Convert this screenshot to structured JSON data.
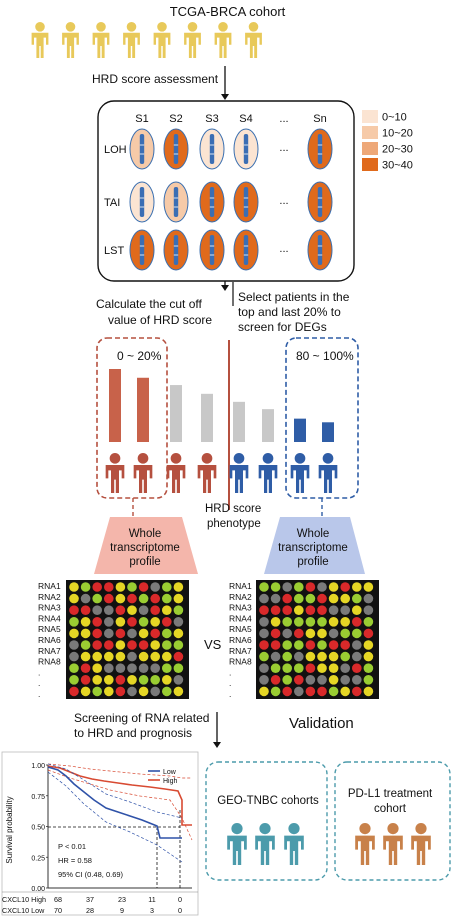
{
  "top": {
    "title": "TCGA-BRCA cohort",
    "step1": "HRD score assessment"
  },
  "matrix": {
    "columns": [
      "S1",
      "S2",
      "S3",
      "S4",
      "...",
      "Sn"
    ],
    "rows": [
      "LOH",
      "TAI",
      "LST"
    ],
    "row_ellipsis": "...",
    "fills": [
      [
        "10~20",
        "30~40",
        "0~10",
        "0~10",
        "",
        "30~40"
      ],
      [
        "0~10",
        "10~20",
        "30~40",
        "30~40",
        "",
        "30~40"
      ],
      [
        "30~40",
        "30~40",
        "30~40",
        "30~40",
        "",
        "30~40"
      ]
    ]
  },
  "legend": {
    "items": [
      {
        "label": "0~10",
        "color": "#fbe4d2"
      },
      {
        "label": "10~20",
        "color": "#f6caa8"
      },
      {
        "label": "20~30",
        "color": "#eea878"
      },
      {
        "label": "30~40",
        "color": "#e06a1c"
      }
    ]
  },
  "middle": {
    "left_text": [
      "Calculate the cut off",
      "value of HRD score"
    ],
    "right_text": [
      "Select patients in the",
      "top and last 20% to",
      "screen for  DEGs"
    ],
    "group_low_label": "0 ~ 20%",
    "group_high_label": "80 ~ 100%",
    "divider_label": [
      "HRD score",
      "phenotype"
    ],
    "bars": [
      {
        "value": 1.0,
        "group": "red"
      },
      {
        "value": 0.88,
        "group": "red"
      },
      {
        "value": 0.78,
        "group": "gray"
      },
      {
        "value": 0.66,
        "group": "gray"
      },
      {
        "value": 0.55,
        "group": "gray"
      },
      {
        "value": 0.45,
        "group": "gray"
      },
      {
        "value": 0.32,
        "group": "blue"
      },
      {
        "value": 0.27,
        "group": "blue"
      }
    ],
    "people": [
      "red",
      "red",
      "red",
      "red",
      "blue",
      "blue",
      "blue",
      "blue"
    ]
  },
  "profiles": {
    "left": [
      "Whole",
      "transcriptome",
      "profile"
    ],
    "right": [
      "Whole",
      "transcriptome",
      "profile"
    ],
    "vs": "VS",
    "rna_labels": [
      "RNA1",
      "RNA2",
      "RNA3",
      "RNA4",
      "RNA5",
      "RNA6",
      "RNA7",
      "RNA8",
      ".",
      ".",
      "."
    ]
  },
  "bottom": {
    "screening": [
      "Screening of RNA related",
      "to HRD and prognosis"
    ],
    "validation": "Validation",
    "cohort1": "GEO-TNBC cohorts",
    "cohort2": [
      "PD-L1 treatment",
      "cohort"
    ]
  },
  "km": {
    "ylabel": "Survival probability",
    "yticks": [
      "1.00",
      "0.75",
      "0.50",
      "0.25",
      "0.00"
    ],
    "legend": [
      "Low",
      "High"
    ],
    "stats": [
      "P < 0.01",
      "HR = 0.58",
      "95% CI (0.48, 0.69)"
    ],
    "risk_rows": [
      {
        "label": "CXCL10 High",
        "values": [
          "68",
          "37",
          "23",
          "11",
          "0"
        ]
      },
      {
        "label": "CXCL10 Low",
        "values": [
          "70",
          "28",
          "9",
          "3",
          "0"
        ]
      }
    ]
  },
  "colors": {
    "person_yellow": "#e8c95a",
    "red": "#b5503f",
    "blue": "#2f5da6",
    "gray": "#c8c8c8",
    "teal": "#4c9bab",
    "brown": "#c8814a"
  }
}
